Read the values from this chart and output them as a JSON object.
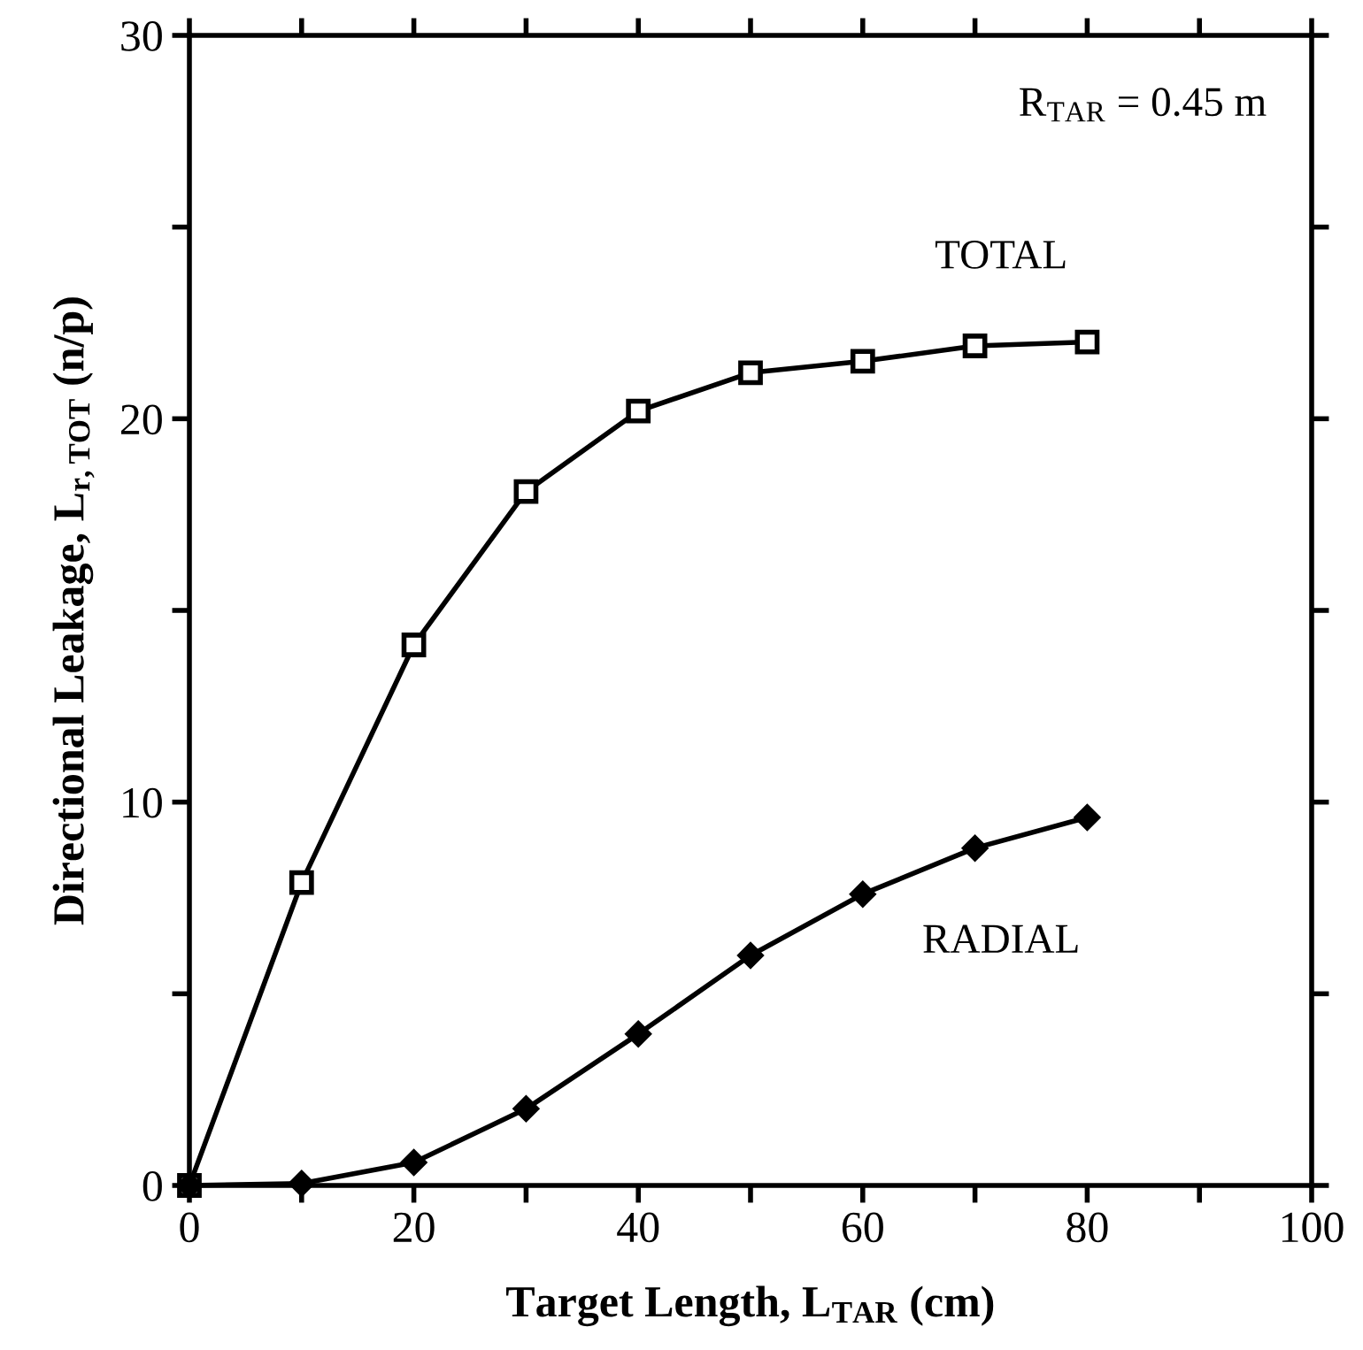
{
  "chart_data": {
    "type": "line",
    "xlabel": "Target Length, L$_{TAR}$ (cm)",
    "ylabel": "Directional Leakage, L$_{r,TOT}$ (n/p)",
    "annotations": [
      "R$_{TAR}$ = 0.45 m"
    ],
    "xlim": [
      0,
      100
    ],
    "ylim": [
      0,
      30
    ],
    "xticks": [
      0,
      {
        "value": 10,
        "label": null
      },
      20,
      {
        "value": 30,
        "label": null
      },
      40,
      {
        "value": 50,
        "label": null
      },
      60,
      {
        "value": 70,
        "label": null
      },
      80,
      {
        "value": 90,
        "label": null
      },
      100
    ],
    "yticks": [
      0,
      {
        "value": 5,
        "label": null
      },
      10,
      {
        "value": 15,
        "label": null
      },
      20,
      {
        "value": 25,
        "label": null
      },
      30
    ],
    "grid": false,
    "legend": false,
    "series": [
      {
        "name": "TOTAL",
        "color": "#000000",
        "marker": "square",
        "x": [
          0,
          10,
          20,
          30,
          40,
          50,
          60,
          70,
          80
        ],
        "values": [
          0,
          7.9,
          14.1,
          18.1,
          20.2,
          21.2,
          21.5,
          21.9,
          22.0
        ]
      },
      {
        "name": "RADIAL",
        "color": "#000000",
        "marker": "diamond",
        "x": [
          0,
          10,
          20,
          30,
          40,
          50,
          60,
          70,
          80
        ],
        "values": [
          0,
          0.05,
          0.6,
          2.0,
          3.95,
          6.0,
          7.6,
          8.8,
          9.6
        ]
      }
    ]
  }
}
